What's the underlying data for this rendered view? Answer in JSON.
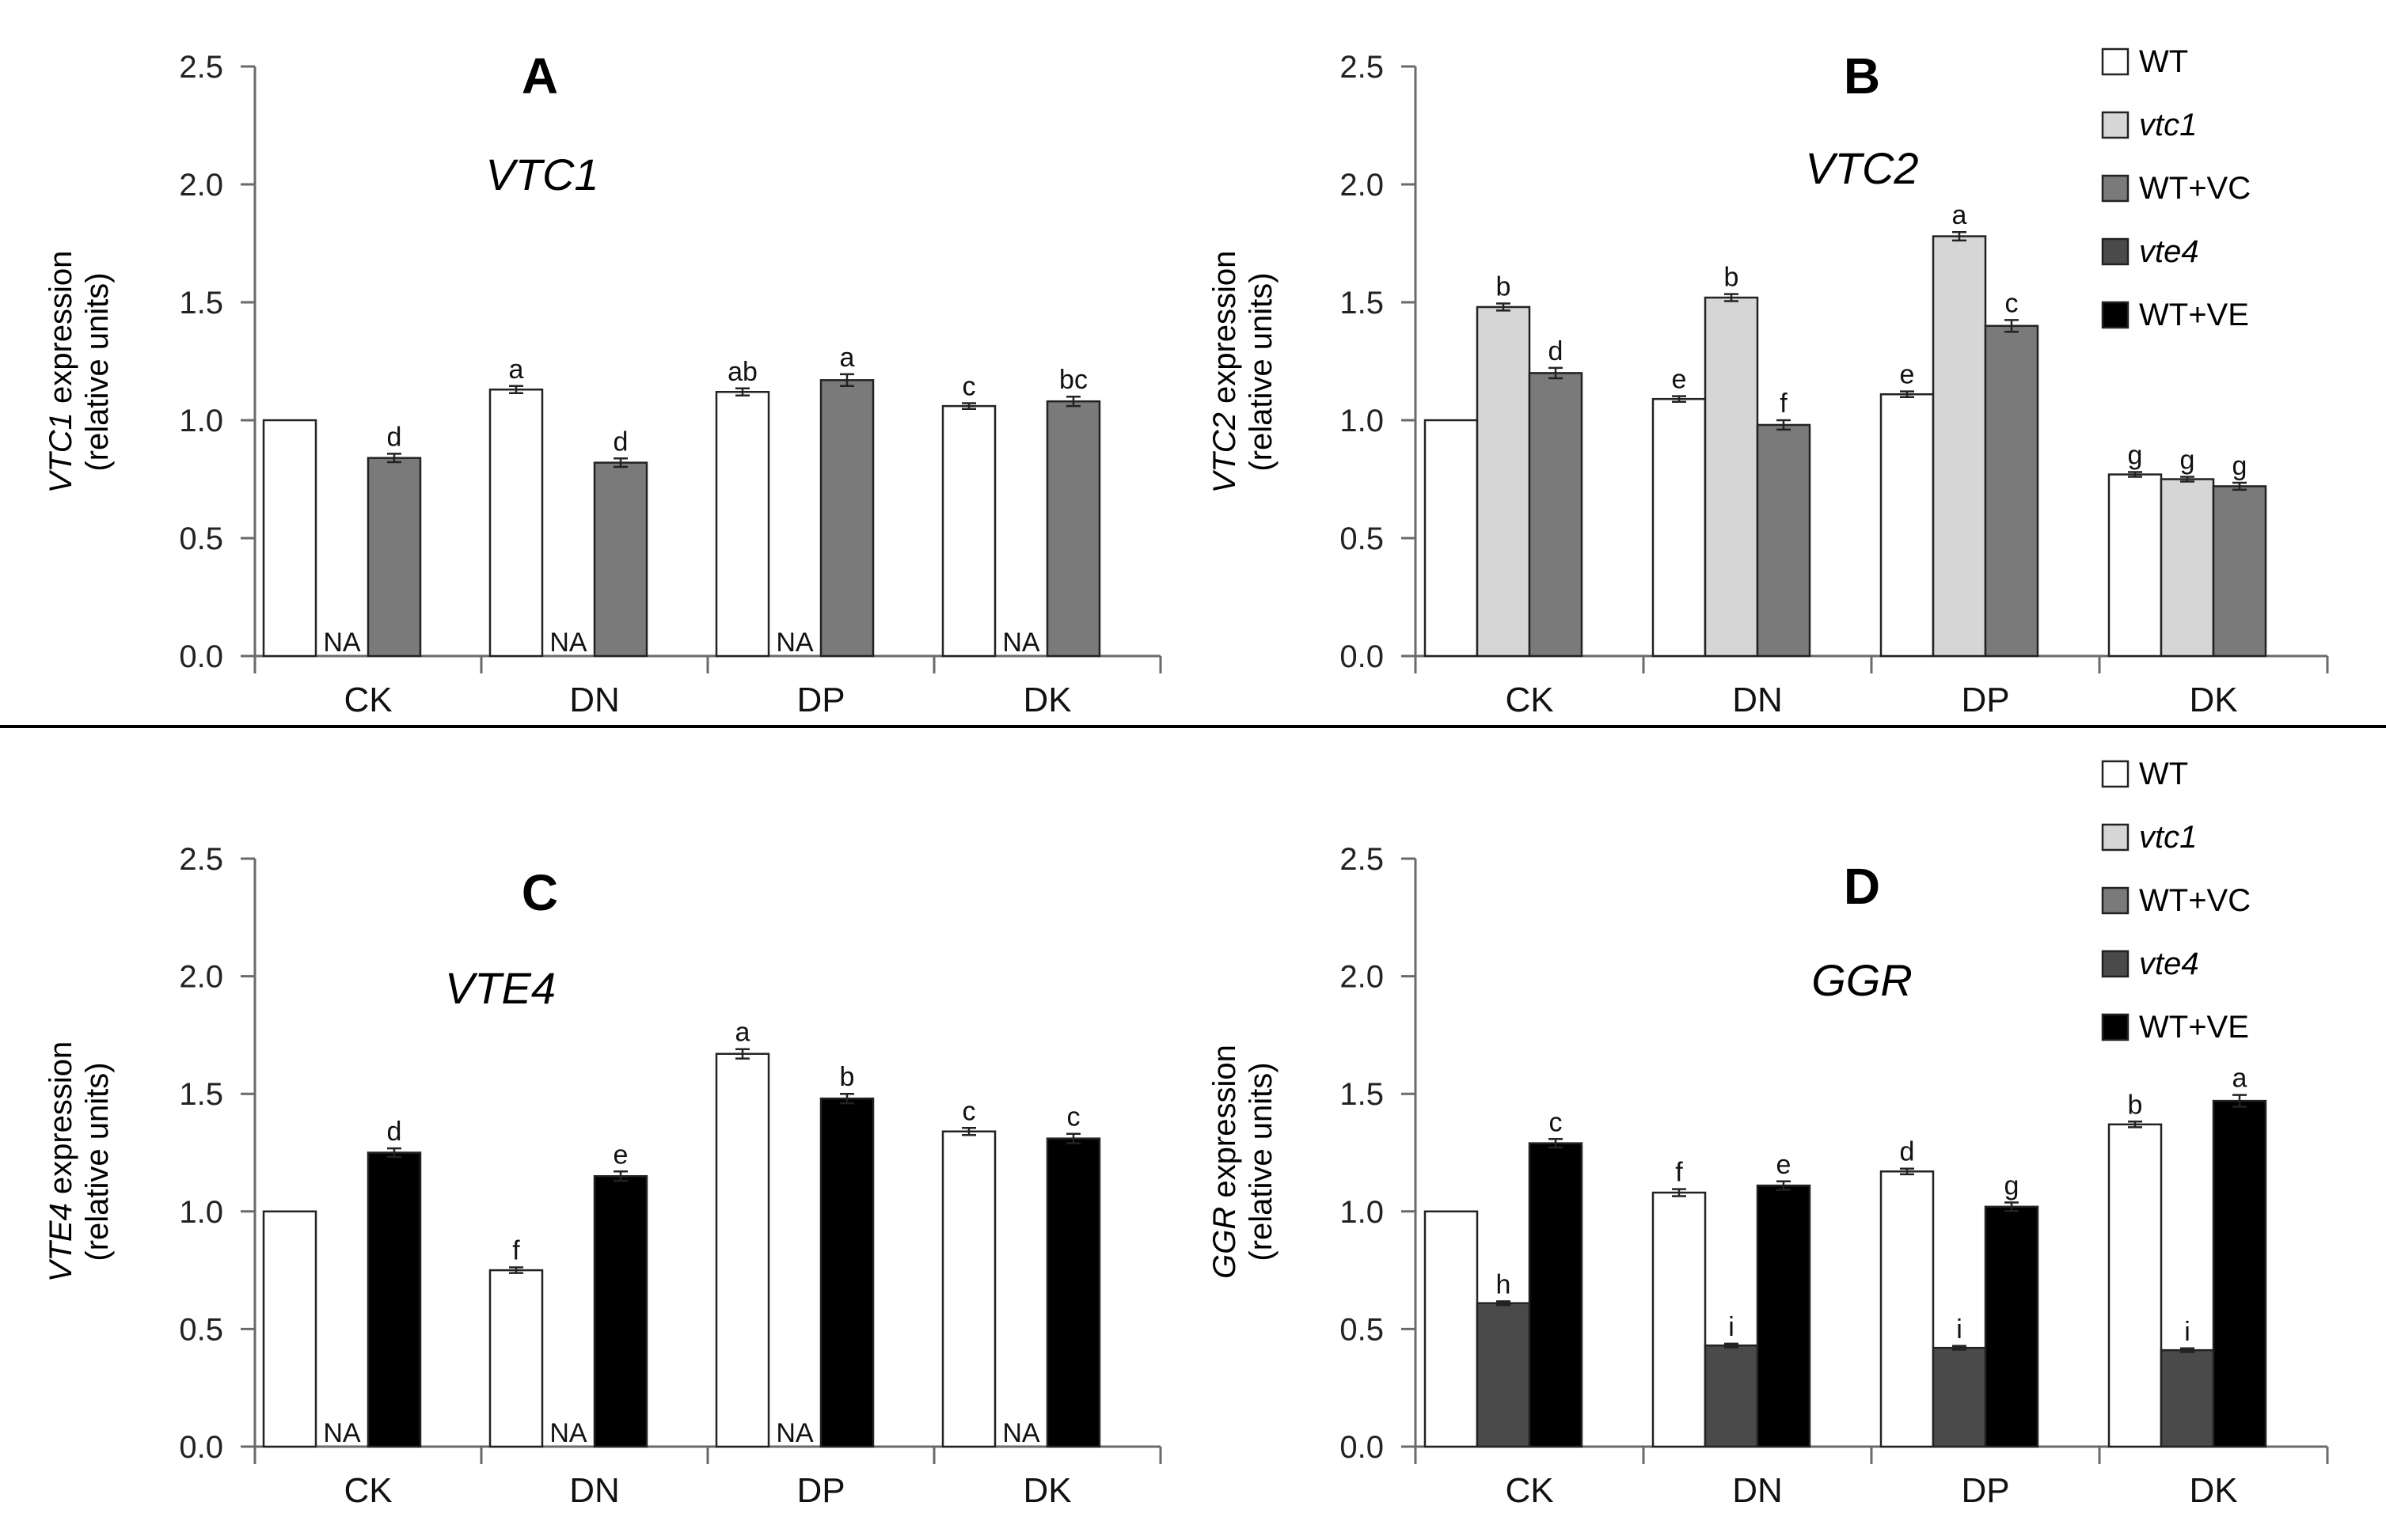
{
  "colors": {
    "WT": "#ffffff",
    "vtc1": "#d6d6d6",
    "WT+VC": "#7a7a7a",
    "vte4": "#4a4a4a",
    "WT+VE": "#000000",
    "axis": "#6a6a6a",
    "divider": "#000000"
  },
  "chart_data": [
    {
      "panel": "A",
      "type": "bar",
      "title": "VTC1",
      "ylabel_gene": "VTC1",
      "ylabel_rest": " expression",
      "ylabel_units": "(relative units)",
      "ylim": [
        0,
        2.5
      ],
      "yticks": [
        "0.0",
        "0.5",
        "1.0",
        "1.5",
        "2.0",
        "2.5"
      ],
      "categories": [
        "CK",
        "DN",
        "DP",
        "DK"
      ],
      "series": [
        {
          "name": "WT",
          "values": [
            1.0,
            1.13,
            1.12,
            1.06
          ],
          "errors": [
            0,
            0.015,
            0.015,
            0.012
          ],
          "labels": [
            "",
            "a",
            "ab",
            "c"
          ]
        },
        {
          "name": "vtc1",
          "values": [
            null,
            null,
            null,
            null
          ],
          "labels": [
            "NA",
            "NA",
            "NA",
            "NA"
          ]
        },
        {
          "name": "WT+VC",
          "values": [
            0.84,
            0.82,
            1.17,
            1.08
          ],
          "errors": [
            0.018,
            0.018,
            0.025,
            0.02
          ],
          "labels": [
            "d",
            "d",
            "a",
            "bc"
          ]
        }
      ]
    },
    {
      "panel": "B",
      "type": "bar",
      "title": "VTC2",
      "ylabel_gene": "VTC2",
      "ylabel_rest": " expression",
      "ylabel_units": "(relative units)",
      "ylim": [
        0,
        2.5
      ],
      "yticks": [
        "0.0",
        "0.5",
        "1.0",
        "1.5",
        "2.0",
        "2.5"
      ],
      "categories": [
        "CK",
        "DN",
        "DP",
        "DK"
      ],
      "series": [
        {
          "name": "WT",
          "values": [
            1.0,
            1.09,
            1.11,
            0.77
          ],
          "errors": [
            0,
            0.012,
            0.012,
            0.01
          ],
          "labels": [
            "",
            "e",
            "e",
            "g"
          ]
        },
        {
          "name": "vtc1",
          "values": [
            1.48,
            1.52,
            1.78,
            0.75
          ],
          "errors": [
            0.015,
            0.015,
            0.018,
            0.01
          ],
          "labels": [
            "b",
            "b",
            "a",
            "g"
          ]
        },
        {
          "name": "WT+VC",
          "values": [
            1.2,
            0.98,
            1.4,
            0.72
          ],
          "errors": [
            0.022,
            0.02,
            0.025,
            0.015
          ],
          "labels": [
            "d",
            "f",
            "c",
            "g"
          ]
        }
      ]
    },
    {
      "panel": "C",
      "type": "bar",
      "title": "VTE4",
      "ylabel_gene": "VTE4",
      "ylabel_rest": " expression",
      "ylabel_units": "(relative units)",
      "ylim": [
        0,
        2.5
      ],
      "yticks": [
        "0.0",
        "0.5",
        "1.0",
        "1.5",
        "2.0",
        "2.5"
      ],
      "categories": [
        "CK",
        "DN",
        "DP",
        "DK"
      ],
      "series": [
        {
          "name": "WT",
          "values": [
            1.0,
            0.75,
            1.67,
            1.34
          ],
          "errors": [
            0,
            0.012,
            0.02,
            0.015
          ],
          "labels": [
            "",
            "f",
            "a",
            "c"
          ]
        },
        {
          "name": "vte4",
          "values": [
            null,
            null,
            null,
            null
          ],
          "labels": [
            "NA",
            "NA",
            "NA",
            "NA"
          ]
        },
        {
          "name": "WT+VE",
          "values": [
            1.25,
            1.15,
            1.48,
            1.31
          ],
          "errors": [
            0.018,
            0.02,
            0.02,
            0.02
          ],
          "labels": [
            "d",
            "e",
            "b",
            "c"
          ]
        }
      ]
    },
    {
      "panel": "D",
      "type": "bar",
      "title": "GGR",
      "ylabel_gene": "GGR",
      "ylabel_rest": " expression",
      "ylabel_units": "(relative units)",
      "ylim": [
        0,
        2.5
      ],
      "yticks": [
        "0.0",
        "0.5",
        "1.0",
        "1.5",
        "2.0",
        "2.5"
      ],
      "categories": [
        "CK",
        "DN",
        "DP",
        "DK"
      ],
      "series": [
        {
          "name": "WT",
          "values": [
            1.0,
            1.08,
            1.17,
            1.37
          ],
          "errors": [
            0,
            0.015,
            0.012,
            0.012
          ],
          "labels": [
            "",
            "f",
            "d",
            "b"
          ]
        },
        {
          "name": "vte4",
          "values": [
            0.61,
            0.43,
            0.42,
            0.41
          ],
          "errors": [
            0.008,
            0.008,
            0.008,
            0.008
          ],
          "labels": [
            "h",
            "i",
            "i",
            "i"
          ]
        },
        {
          "name": "WT+VE",
          "values": [
            1.29,
            1.11,
            1.02,
            1.47
          ],
          "errors": [
            0.018,
            0.018,
            0.018,
            0.025
          ],
          "labels": [
            "c",
            "e",
            "g",
            "a"
          ]
        }
      ]
    }
  ],
  "legends": [
    {
      "items": [
        "WT",
        "vtc1",
        "WT+VC",
        "vte4",
        "WT+VE"
      ],
      "italic": [
        false,
        true,
        false,
        true,
        false
      ]
    },
    {
      "items": [
        "WT",
        "vtc1",
        "WT+VC",
        "vte4",
        "WT+VE"
      ],
      "italic": [
        false,
        true,
        false,
        true,
        false
      ]
    }
  ]
}
